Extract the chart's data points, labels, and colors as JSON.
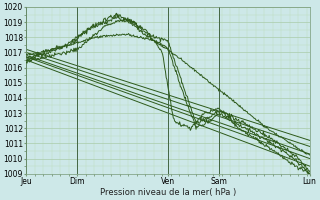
{
  "xlabel": "Pression niveau de la mer( hPa )",
  "background_color": "#cde8e8",
  "plot_bg_color": "#cde8e8",
  "grid_major_color": "#aaccaa",
  "grid_minor_color": "#bbddbb",
  "line_color": "#2d5a1b",
  "ylim": [
    1009,
    1020
  ],
  "yticks": [
    1009,
    1010,
    1011,
    1012,
    1013,
    1014,
    1015,
    1016,
    1017,
    1018,
    1019,
    1020
  ],
  "day_labels": [
    "Jeu",
    "Dim",
    "Ven",
    "Sam",
    "Lun"
  ],
  "day_positions": [
    0.0,
    0.18,
    0.5,
    0.68,
    1.0
  ]
}
